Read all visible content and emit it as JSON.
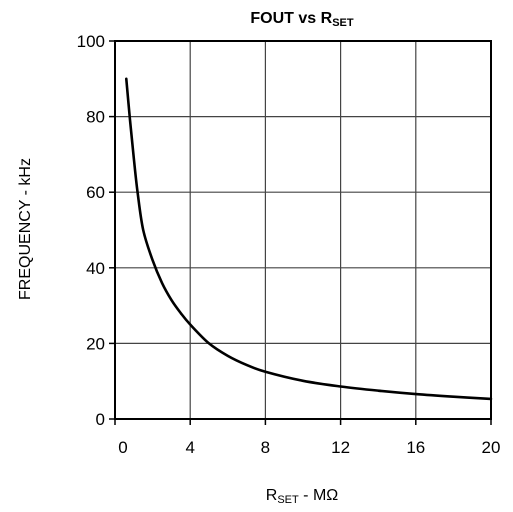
{
  "chart_data": {
    "type": "line",
    "title": {
      "main": "FOUT vs R",
      "sub": "SET"
    },
    "xlabel": {
      "main": "R",
      "sub": "SET",
      "suffix": " - MΩ"
    },
    "ylabel": "FREQUENCY - kHz",
    "xlim": [
      0,
      20
    ],
    "ylim": [
      0,
      100
    ],
    "xticks": [
      0,
      4,
      8,
      12,
      16,
      20
    ],
    "yticks": [
      0,
      20,
      40,
      60,
      80,
      100
    ],
    "xtick_labels": [
      "0",
      "4",
      "8",
      "12",
      "16",
      "20"
    ],
    "ytick_labels": [
      "0",
      "20",
      "40",
      "60",
      "80",
      "100"
    ],
    "grid": true,
    "series": [
      {
        "x": [
          0.6,
          0.8,
          1.0,
          1.2,
          1.5,
          2.0,
          2.5,
          3.0,
          3.5,
          4.0,
          5.0,
          6.0,
          7.0,
          8.0,
          10.0,
          12.0,
          14.0,
          16.0,
          18.0,
          20.0
        ],
        "y": [
          90,
          79,
          69,
          60,
          50,
          42,
          36,
          31.5,
          28,
          25,
          20,
          16.7,
          14.3,
          12.5,
          10.1,
          8.6,
          7.5,
          6.6,
          5.9,
          5.3
        ],
        "color": "#000000"
      }
    ]
  }
}
